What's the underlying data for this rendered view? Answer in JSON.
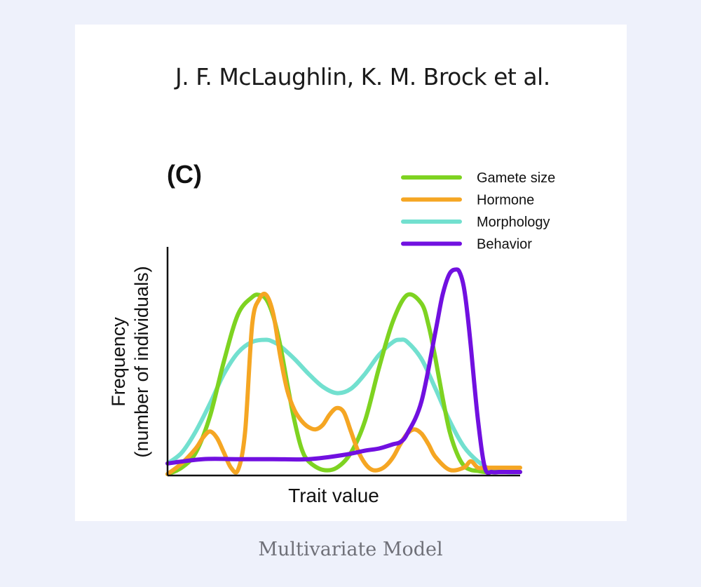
{
  "figure": {
    "authors": "J. F. McLaughlin, K. M. Brock et al.",
    "panel_label": "(C)",
    "caption": "Multivariate Model"
  },
  "chart_data": {
    "type": "line",
    "title": "",
    "xlabel": "Trait value",
    "ylabel_line1": "Frequency",
    "ylabel_line2": "(number of individuals)",
    "x_range": [
      0,
      100
    ],
    "y_range": [
      0,
      100
    ],
    "grid": false,
    "ticks": false,
    "legend_position": "top-right",
    "series": [
      {
        "name": "Gamete size",
        "color": "#7ed321",
        "x": [
          0,
          4,
          8,
          12,
          16,
          20,
          24,
          26,
          28,
          30,
          32,
          34,
          36,
          38,
          40,
          44,
          48,
          52,
          56,
          60,
          64,
          68,
          72,
          74,
          76,
          78,
          80,
          82,
          84,
          86,
          88,
          90,
          94,
          100
        ],
        "y": [
          0,
          3,
          10,
          27,
          53,
          75,
          83,
          84,
          82,
          74,
          60,
          42,
          25,
          12,
          6,
          2,
          3,
          10,
          25,
          50,
          72,
          84,
          80,
          70,
          54,
          36,
          20,
          10,
          4,
          2,
          1.5,
          1,
          1,
          1
        ]
      },
      {
        "name": "Hormone",
        "color": "#f5a623",
        "x": [
          0,
          4,
          8,
          10,
          12,
          14,
          16,
          18,
          20,
          22,
          24,
          26,
          28,
          30,
          32,
          34,
          36,
          38,
          40,
          42,
          44,
          46,
          48,
          50,
          52,
          54,
          56,
          58,
          60,
          62,
          64,
          66,
          68,
          70,
          72,
          74,
          76,
          80,
          84,
          86,
          88,
          90,
          92,
          94,
          96,
          98,
          100
        ],
        "y": [
          0,
          5,
          12,
          17,
          20,
          17,
          10,
          3,
          2,
          20,
          70,
          82,
          84,
          75,
          55,
          39,
          30,
          25,
          22,
          21,
          23,
          28,
          31,
          29,
          20,
          11,
          5,
          2,
          2,
          4,
          8,
          14,
          19,
          21,
          19,
          14,
          8,
          2,
          3,
          6,
          3,
          3,
          3,
          3,
          3,
          3,
          3
        ],
        "x_note": ""
      },
      {
        "name": "Morphology",
        "color": "#72e0cf",
        "x": [
          0,
          4,
          8,
          12,
          16,
          20,
          24,
          28,
          30,
          32,
          36,
          40,
          44,
          48,
          52,
          56,
          60,
          64,
          66,
          68,
          72,
          76,
          80,
          84,
          88,
          92,
          96,
          100
        ],
        "y": [
          5,
          10,
          20,
          33,
          47,
          57,
          62,
          63,
          62,
          60,
          54,
          47,
          41,
          38,
          40,
          47,
          56,
          62,
          63,
          62,
          54,
          40,
          25,
          13,
          6,
          2,
          1,
          1
        ]
      },
      {
        "name": "Behavior",
        "color": "#7110e0",
        "x": [
          0,
          10,
          20,
          30,
          40,
          50,
          56,
          60,
          64,
          66,
          68,
          72,
          76,
          78,
          80,
          82,
          83,
          84,
          85,
          86,
          88,
          90,
          92,
          94,
          96,
          100
        ],
        "y": [
          5,
          7,
          7,
          7,
          7,
          9,
          11,
          12,
          14,
          15,
          19,
          34,
          67,
          84,
          94,
          96,
          94,
          88,
          76,
          60,
          26,
          3,
          1,
          1,
          1,
          1
        ]
      }
    ]
  }
}
